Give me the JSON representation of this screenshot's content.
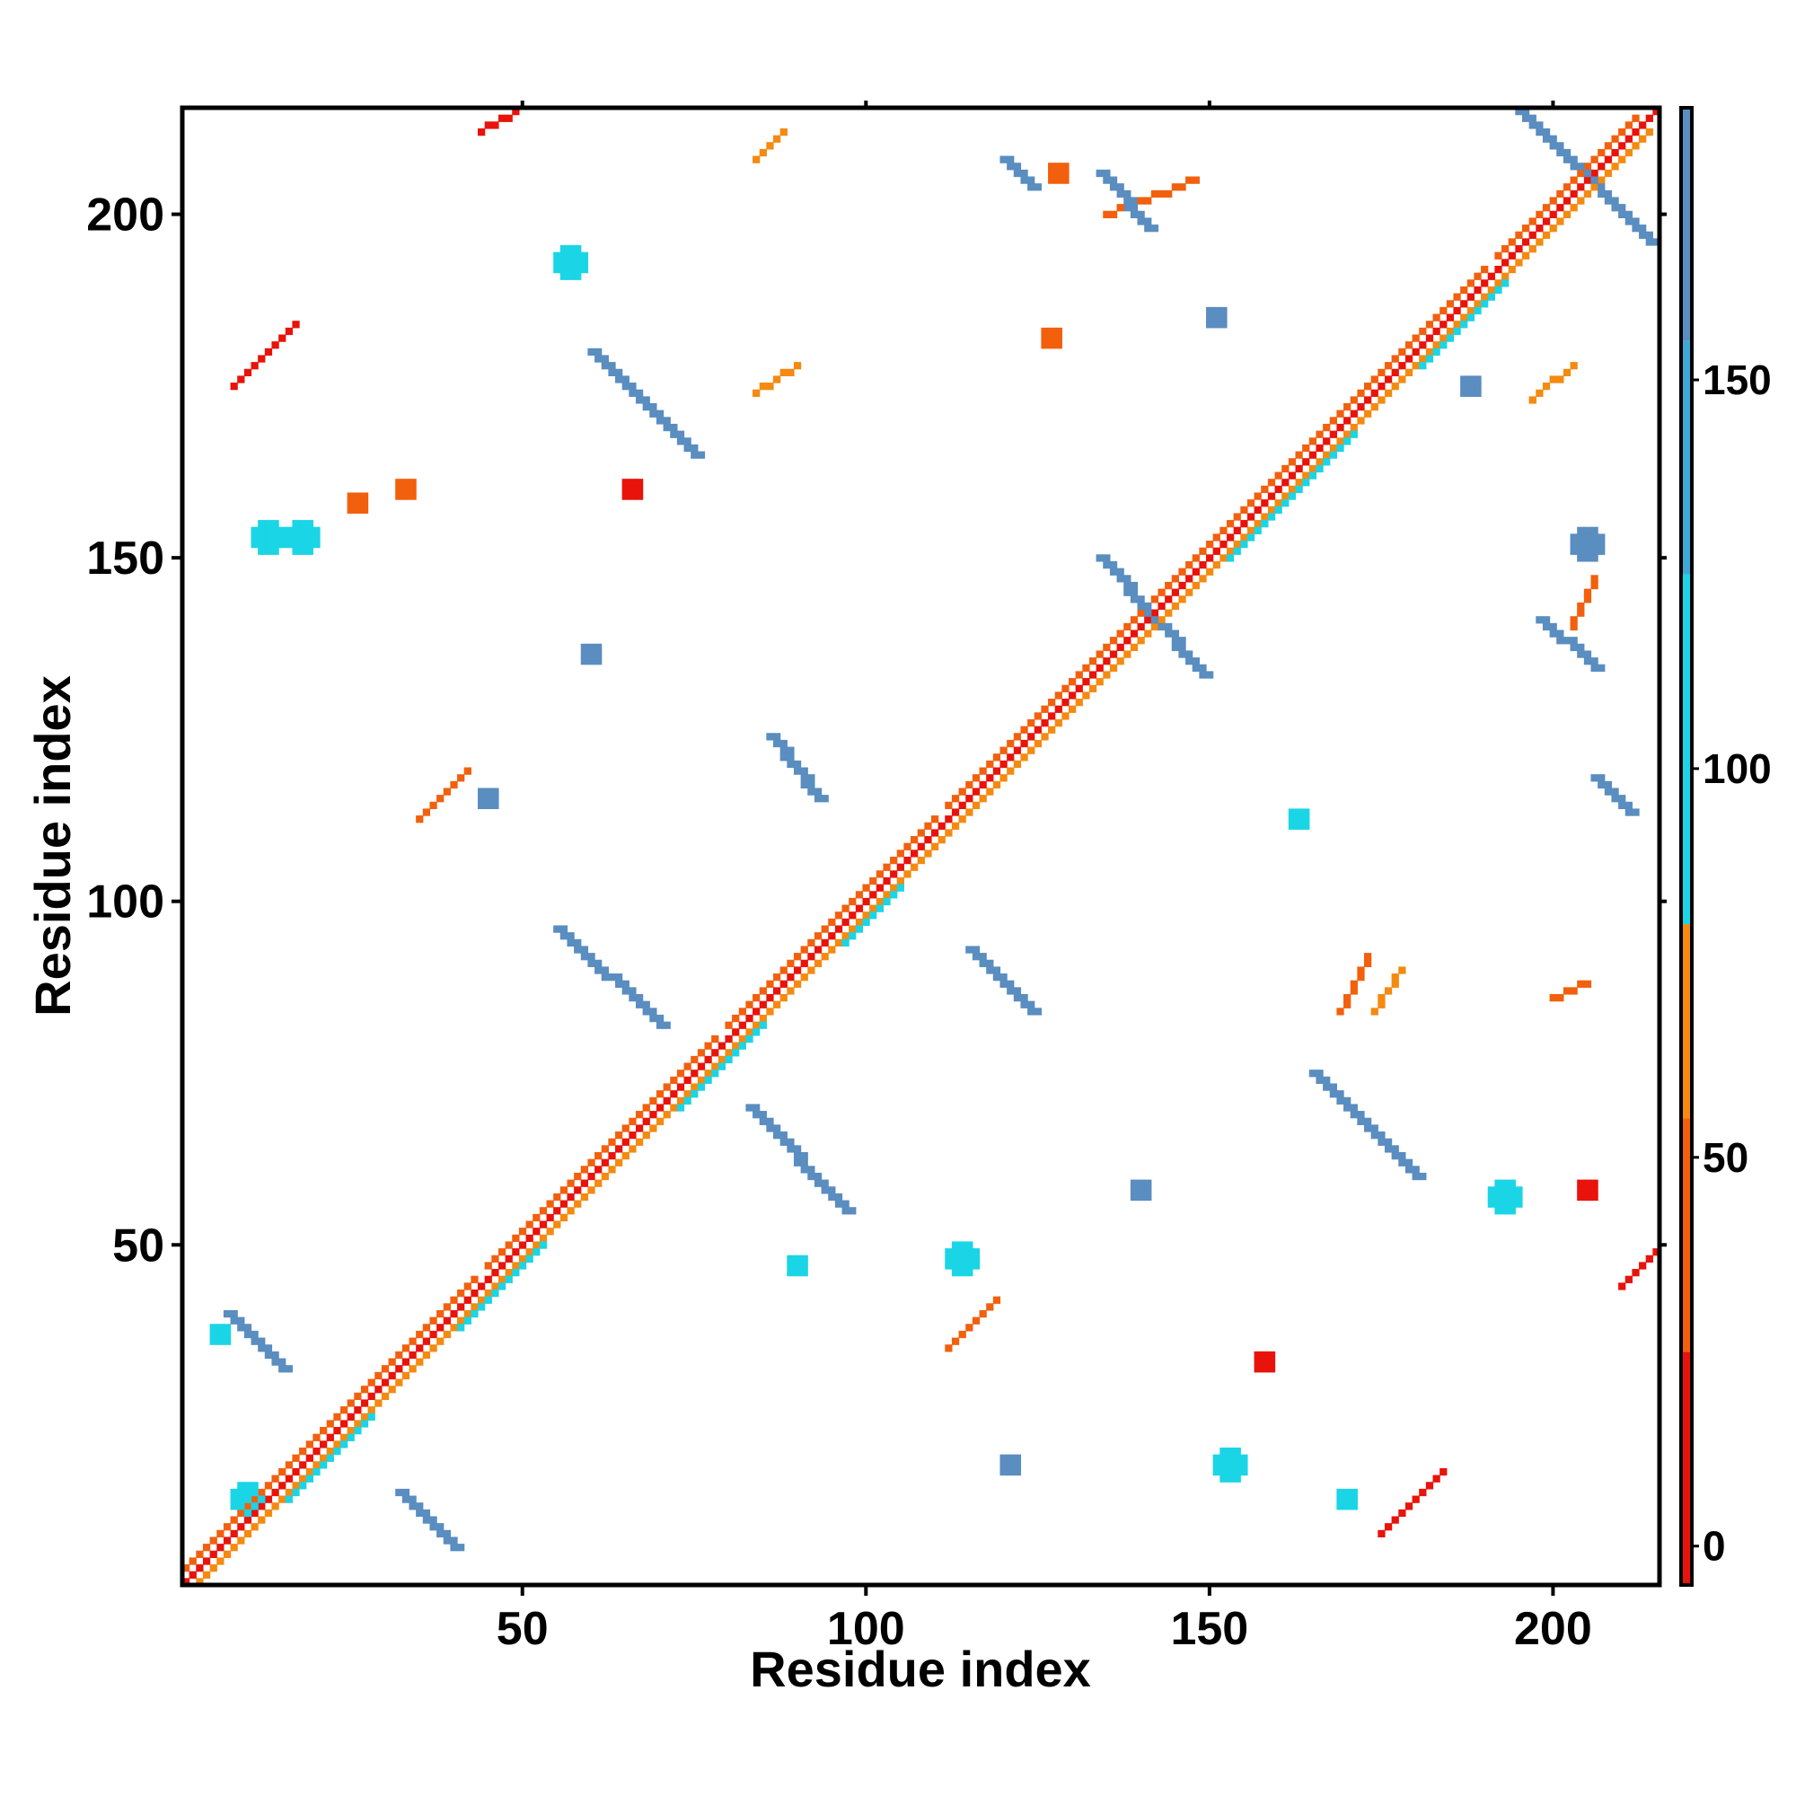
{
  "chart_data": {
    "type": "heatmap",
    "title": "",
    "xlabel": "Residue index",
    "ylabel": "Residue index",
    "xlim": [
      1,
      215
    ],
    "ylim": [
      1,
      215
    ],
    "x_ticks": [
      50,
      100,
      150,
      200
    ],
    "y_ticks": [
      50,
      100,
      150,
      200
    ],
    "x_tick_labels": [
      "50",
      "100",
      "150",
      "200"
    ],
    "y_tick_labels": [
      "50",
      "100",
      "150",
      "200"
    ],
    "grid": false,
    "symmetric": true,
    "colorbar": {
      "range": [
        -5,
        185
      ],
      "ticks": [
        0,
        50,
        100,
        150
      ],
      "tick_labels": [
        "0",
        "50",
        "100",
        "150"
      ],
      "bands": [
        {
          "from": -5,
          "to": 25,
          "color": "#e8130a"
        },
        {
          "from": 25,
          "to": 55,
          "color": "#f2600d"
        },
        {
          "from": 55,
          "to": 80,
          "color": "#f48a10"
        },
        {
          "from": 80,
          "to": 125,
          "color": "#1ad5e6"
        },
        {
          "from": 125,
          "to": 155,
          "color": "#3fa7d6"
        },
        {
          "from": 155,
          "to": 185,
          "color": "#5a8dc0"
        }
      ]
    },
    "contact_segments_note_values_in_degrees": true,
    "diagonal": {
      "from": 1,
      "to": 215,
      "value": 10
    },
    "segments": [
      {
        "x0": 1,
        "y0": 3,
        "x1": 43,
        "y1": 45,
        "value": 40
      },
      {
        "x0": 45,
        "y0": 47,
        "x1": 78,
        "y1": 80,
        "value": 45
      },
      {
        "x0": 80,
        "y0": 82,
        "x1": 110,
        "y1": 112,
        "value": 45
      },
      {
        "x0": 112,
        "y0": 114,
        "x1": 140,
        "y1": 142,
        "value": 45
      },
      {
        "x0": 142,
        "y0": 144,
        "x1": 190,
        "y1": 192,
        "value": 45
      },
      {
        "x0": 192,
        "y0": 194,
        "x1": 212,
        "y1": 214,
        "value": 45
      },
      {
        "x0": 3,
        "y0": 1,
        "x1": 43,
        "y1": 41,
        "value": 65
      },
      {
        "x0": 43,
        "y0": 41,
        "x1": 190,
        "y1": 188,
        "value": 65
      },
      {
        "x0": 190,
        "y0": 188,
        "x1": 214,
        "y1": 212,
        "value": 65
      },
      {
        "x0": 15,
        "y0": 13,
        "x1": 27,
        "y1": 25,
        "value": 100
      },
      {
        "x0": 40,
        "y0": 38,
        "x1": 52,
        "y1": 50,
        "value": 100
      },
      {
        "x0": 72,
        "y0": 70,
        "x1": 84,
        "y1": 82,
        "value": 100
      },
      {
        "x0": 96,
        "y0": 94,
        "x1": 104,
        "y1": 102,
        "value": 100
      },
      {
        "x0": 152,
        "y0": 150,
        "x1": 170,
        "y1": 168,
        "value": 100
      },
      {
        "x0": 180,
        "y0": 178,
        "x1": 192,
        "y1": 190,
        "value": 100
      },
      {
        "x0": 7,
        "y0": 40,
        "x1": 15,
        "y1": 32,
        "value": 165
      },
      {
        "x0": 32,
        "y0": 14,
        "x1": 40,
        "y1": 6,
        "value": 165
      },
      {
        "x0": 55,
        "y0": 96,
        "x1": 70,
        "y1": 82,
        "value": 165
      },
      {
        "x0": 83,
        "y0": 70,
        "x1": 97,
        "y1": 55,
        "value": 165
      },
      {
        "x0": 86,
        "y0": 124,
        "x1": 93,
        "y1": 115,
        "value": 165
      },
      {
        "x0": 115,
        "y0": 93,
        "x1": 124,
        "y1": 84,
        "value": 165
      },
      {
        "x0": 60,
        "y0": 180,
        "x1": 75,
        "y1": 165,
        "value": 165
      },
      {
        "x0": 165,
        "y0": 75,
        "x1": 180,
        "y1": 60,
        "value": 165
      },
      {
        "x0": 134,
        "y0": 150,
        "x1": 149,
        "y1": 133,
        "value": 165
      },
      {
        "x0": 134,
        "y0": 206,
        "x1": 141,
        "y1": 198,
        "value": 165
      },
      {
        "x0": 198,
        "y0": 141,
        "x1": 206,
        "y1": 134,
        "value": 165
      },
      {
        "x0": 195,
        "y0": 215,
        "x1": 214,
        "y1": 196,
        "value": 165
      },
      {
        "x0": 206,
        "y0": 118,
        "x1": 211,
        "y1": 113,
        "value": 165
      },
      {
        "x0": 120,
        "y0": 208,
        "x1": 124,
        "y1": 204,
        "value": 165
      },
      {
        "x0": 8,
        "y0": 175,
        "x1": 17,
        "y1": 184,
        "value": 20
      },
      {
        "x0": 175,
        "y0": 8,
        "x1": 184,
        "y1": 17,
        "value": 20
      },
      {
        "x0": 44,
        "y0": 212,
        "x1": 49,
        "y1": 215,
        "value": 20
      },
      {
        "x0": 210,
        "y0": 44,
        "x1": 215,
        "y1": 49,
        "value": 20
      },
      {
        "x0": 35,
        "y0": 112,
        "x1": 42,
        "y1": 119,
        "value": 30
      },
      {
        "x0": 112,
        "y0": 35,
        "x1": 119,
        "y1": 42,
        "value": 30
      },
      {
        "x0": 84,
        "y0": 174,
        "x1": 90,
        "y1": 178,
        "value": 60
      },
      {
        "x0": 174,
        "y0": 84,
        "x1": 178,
        "y1": 90,
        "value": 60
      },
      {
        "x0": 84,
        "y0": 208,
        "x1": 88,
        "y1": 212,
        "value": 60
      },
      {
        "x0": 135,
        "y0": 200,
        "x1": 148,
        "y1": 205,
        "value": 50
      },
      {
        "x0": 169,
        "y0": 84,
        "x1": 173,
        "y1": 92,
        "value": 50
      },
      {
        "x0": 200,
        "y0": 86,
        "x1": 205,
        "y1": 88,
        "value": 40
      },
      {
        "x0": 203,
        "y0": 140,
        "x1": 206,
        "y1": 147,
        "value": 50
      },
      {
        "x0": 197,
        "y0": 173,
        "x1": 203,
        "y1": 178,
        "value": 60
      }
    ],
    "blobs": [
      {
        "x": 10,
        "y": 13,
        "r": 2,
        "value": 100
      },
      {
        "x": 6,
        "y": 37,
        "r": 1,
        "value": 100
      },
      {
        "x": 18,
        "y": 153,
        "r": 2,
        "value": 100
      },
      {
        "x": 13,
        "y": 153,
        "r": 2,
        "value": 100
      },
      {
        "x": 57,
        "y": 193,
        "r": 2,
        "value": 100
      },
      {
        "x": 193,
        "y": 57,
        "r": 2,
        "value": 100
      },
      {
        "x": 153,
        "y": 18,
        "r": 2,
        "value": 100
      },
      {
        "x": 170,
        "y": 13,
        "r": 1,
        "value": 100
      },
      {
        "x": 121,
        "y": 18,
        "r": 1,
        "value": 165
      },
      {
        "x": 90,
        "y": 47,
        "r": 1,
        "value": 100
      },
      {
        "x": 45,
        "y": 115,
        "r": 1,
        "value": 165
      },
      {
        "x": 114,
        "y": 48,
        "r": 2,
        "value": 100
      },
      {
        "x": 163,
        "y": 112,
        "r": 1,
        "value": 100
      },
      {
        "x": 188,
        "y": 175,
        "r": 1,
        "value": 165
      },
      {
        "x": 205,
        "y": 152,
        "r": 2,
        "value": 165
      },
      {
        "x": 205,
        "y": 58,
        "r": 1,
        "value": 20
      },
      {
        "x": 158,
        "y": 33,
        "r": 1,
        "value": 20
      },
      {
        "x": 128,
        "y": 206,
        "r": 1,
        "value": 30
      },
      {
        "x": 26,
        "y": 158,
        "r": 1,
        "value": 40
      },
      {
        "x": 33,
        "y": 160,
        "r": 1,
        "value": 30
      },
      {
        "x": 66,
        "y": 160,
        "r": 1,
        "value": 20
      },
      {
        "x": 60,
        "y": 136,
        "r": 1,
        "value": 165
      },
      {
        "x": 151,
        "y": 185,
        "r": 1,
        "value": 165
      },
      {
        "x": 140,
        "y": 58,
        "r": 1,
        "value": 165
      },
      {
        "x": 127,
        "y": 182,
        "r": 1,
        "value": 50
      }
    ]
  }
}
